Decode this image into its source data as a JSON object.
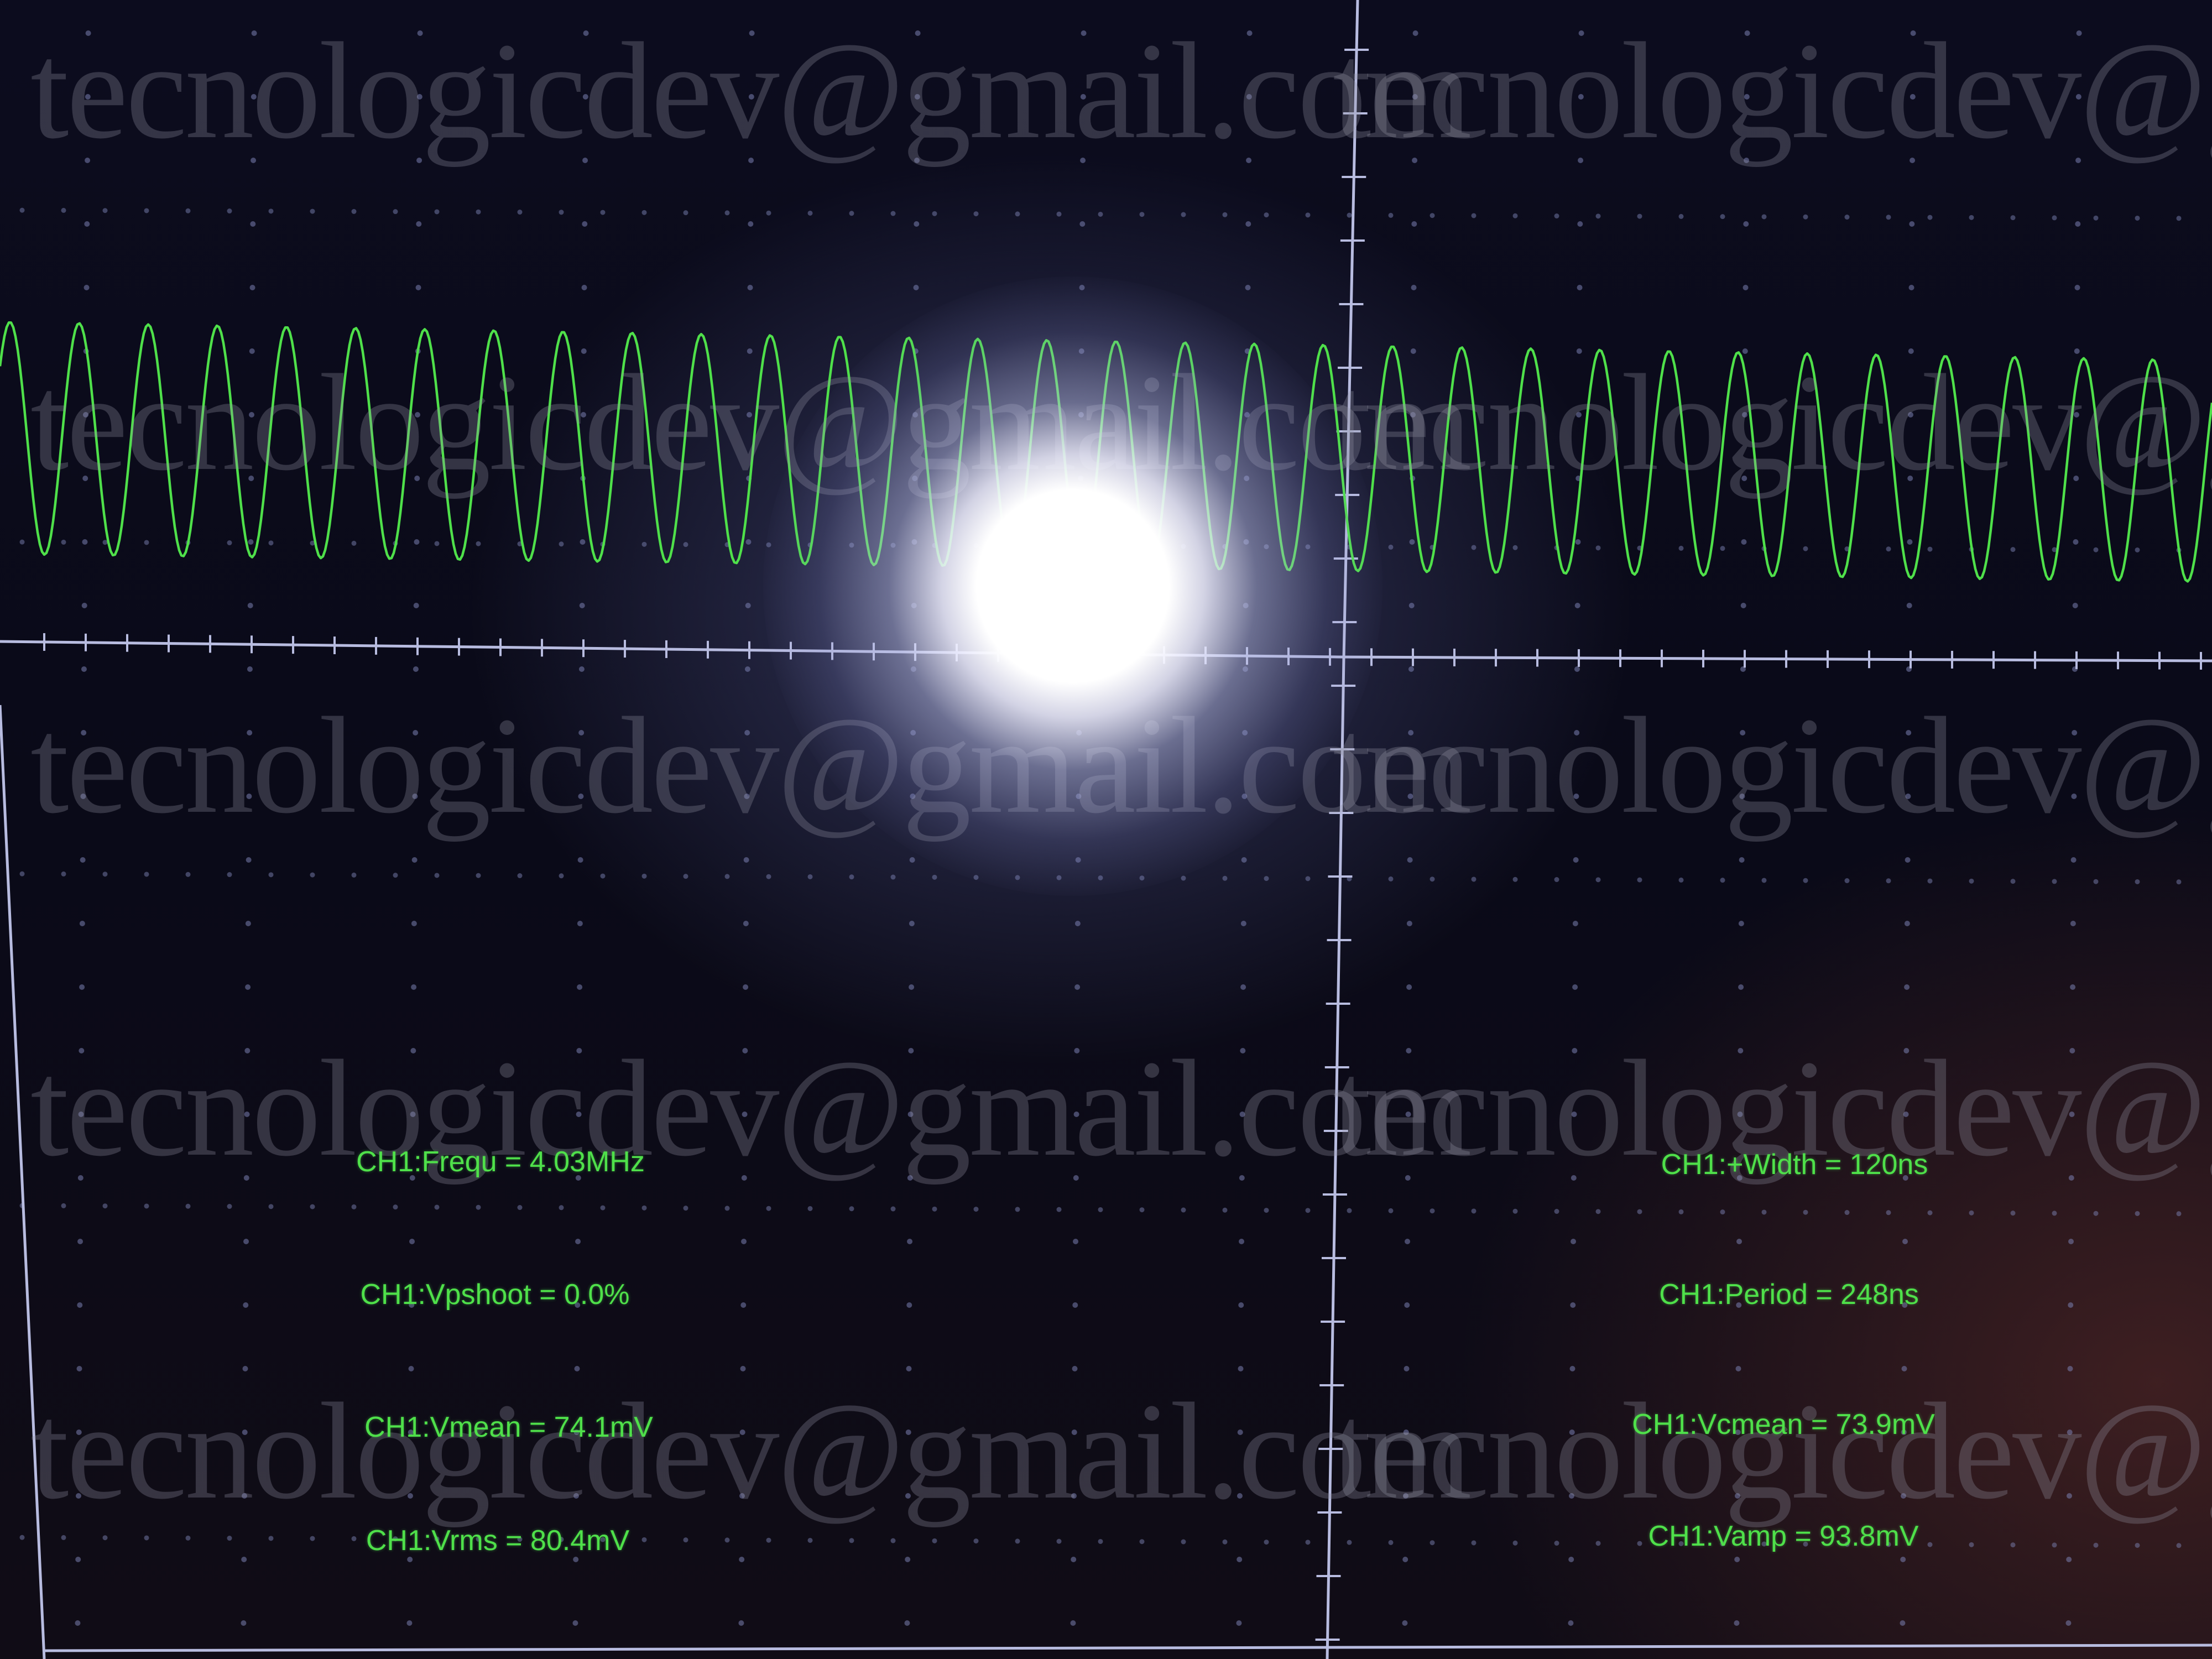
{
  "watermark": {
    "text_full": "tecnologicdev@gmail.com",
    "text_cropped": "tecnologicdev@gm"
  },
  "measurements": {
    "frequency": "CH1:Frequ = 4.03MHz",
    "positive_width": "CH1:+Width = 120ns",
    "vpshoot": "CH1:Vpshoot = 0.0%",
    "period": "CH1:Period = 248ns",
    "vmean": "CH1:Vmean = 74.1mV",
    "vcmean": "CH1:Vcmean = 73.9mV",
    "vrms": "CH1:Vrms = 80.4mV",
    "vamp": "CH1:Vamp = 93.8mV"
  },
  "trace": {
    "color": "#4fe04a",
    "cycles_visible": 32
  },
  "colors": {
    "graticule": "#b8bce0",
    "dots": "#7a80b0"
  }
}
